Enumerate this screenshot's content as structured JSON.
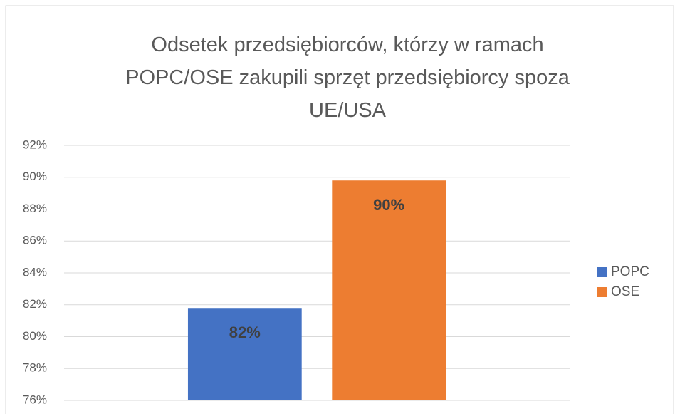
{
  "chart_data": {
    "type": "bar",
    "title": "Odsetek przedsiębiorców, którzy w ramach POPC/OSE zakupili sprzęt przedsiębiorcy spoza UE/USA",
    "categories": [
      null
    ],
    "series": [
      {
        "name": "POPC",
        "color": "#4472c4",
        "values": [
          81.8
        ],
        "value_labels": [
          "82%"
        ]
      },
      {
        "name": "OSE",
        "color": "#ed7d31",
        "values": [
          89.8
        ],
        "value_labels": [
          "90%"
        ]
      }
    ],
    "ylim": [
      76,
      92
    ],
    "yticks": [
      {
        "value": 76,
        "label": "76%"
      },
      {
        "value": 78,
        "label": "78%"
      },
      {
        "value": 80,
        "label": "80%"
      },
      {
        "value": 82,
        "label": "82%"
      },
      {
        "value": 84,
        "label": "84%"
      },
      {
        "value": 86,
        "label": "86%"
      },
      {
        "value": 88,
        "label": "88%"
      },
      {
        "value": 90,
        "label": "90%"
      },
      {
        "value": 92,
        "label": "92%"
      }
    ],
    "grid": true,
    "legend": "right"
  }
}
